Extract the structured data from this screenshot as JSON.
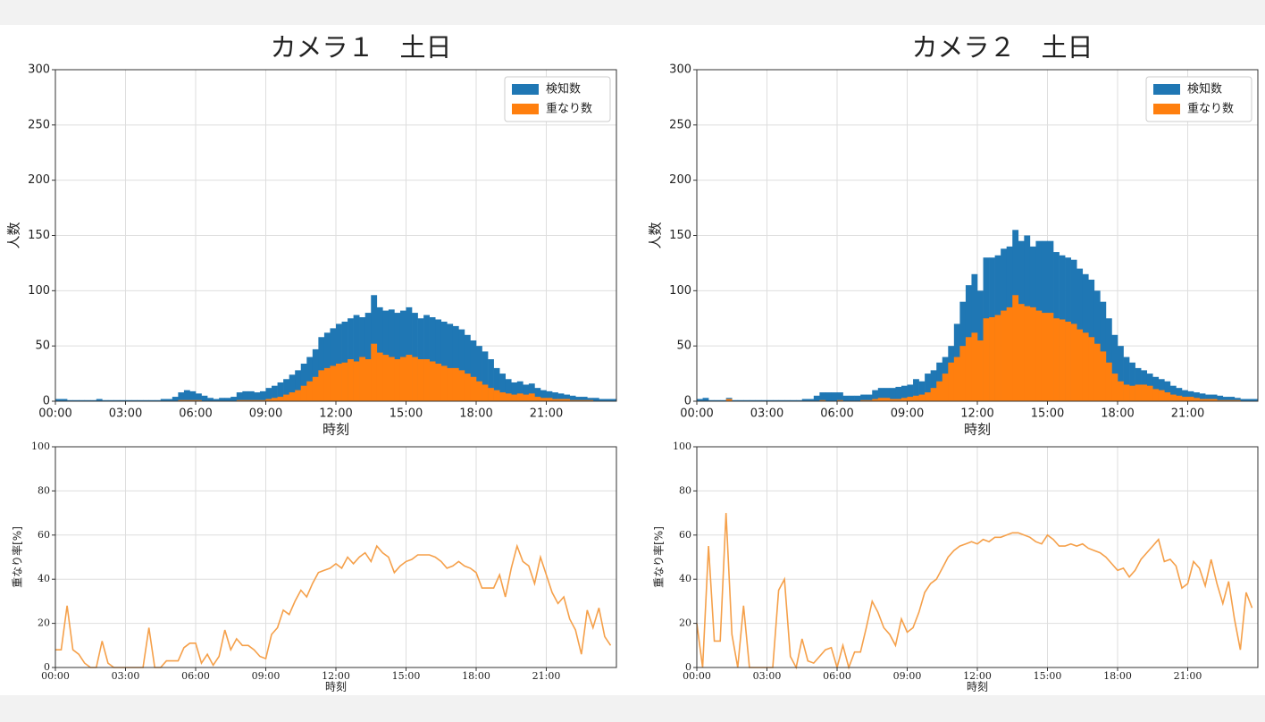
{
  "chart_data": [
    {
      "type": "bar",
      "title": "カメラ１　土日",
      "xlabel": "時刻",
      "ylabel": "人数",
      "legend": "upper right",
      "grid": true,
      "x": [
        0,
        0.25,
        0.5,
        0.75,
        1,
        1.25,
        1.5,
        1.75,
        2,
        2.25,
        2.5,
        2.75,
        3,
        3.25,
        3.5,
        3.75,
        4,
        4.25,
        4.5,
        4.75,
        5,
        5.25,
        5.5,
        5.75,
        6,
        6.25,
        6.5,
        6.75,
        7,
        7.25,
        7.5,
        7.75,
        8,
        8.25,
        8.5,
        8.75,
        9,
        9.25,
        9.5,
        9.75,
        10,
        10.25,
        10.5,
        10.75,
        11,
        11.25,
        11.5,
        11.75,
        12,
        12.25,
        12.5,
        12.75,
        13,
        13.25,
        13.5,
        13.75,
        14,
        14.25,
        14.5,
        14.75,
        15,
        15.25,
        15.5,
        15.75,
        16,
        16.25,
        16.5,
        16.75,
        17,
        17.25,
        17.5,
        17.75,
        18,
        18.25,
        18.5,
        18.75,
        19,
        19.25,
        19.5,
        19.75,
        20,
        20.25,
        20.5,
        20.75,
        21,
        21.25,
        21.5,
        21.75,
        22,
        22.25,
        22.5,
        22.75,
        23,
        23.25,
        23.5,
        23.75
      ],
      "xlim": [
        0,
        24
      ],
      "xticks": [
        {
          "value": 0,
          "label": "00:00"
        },
        {
          "value": 3,
          "label": "03:00"
        },
        {
          "value": 6,
          "label": "06:00"
        },
        {
          "value": 9,
          "label": "09:00"
        },
        {
          "value": 12,
          "label": "12:00"
        },
        {
          "value": 15,
          "label": "15:00"
        },
        {
          "value": 18,
          "label": "18:00"
        },
        {
          "value": 21,
          "label": "21:00"
        }
      ],
      "ylim": [
        0,
        300
      ],
      "yticks": [
        0,
        50,
        100,
        150,
        200,
        250,
        300
      ],
      "series": [
        {
          "name": "検知数",
          "color": "#1f77b4",
          "values": [
            2,
            2,
            1,
            1,
            1,
            1,
            1,
            2,
            1,
            1,
            1,
            1,
            1,
            1,
            1,
            1,
            1,
            1,
            2,
            2,
            4,
            8,
            10,
            9,
            7,
            5,
            3,
            2,
            3,
            3,
            4,
            8,
            9,
            9,
            8,
            9,
            12,
            14,
            17,
            20,
            24,
            28,
            34,
            40,
            47,
            58,
            62,
            66,
            70,
            72,
            75,
            78,
            76,
            80,
            96,
            85,
            82,
            83,
            80,
            82,
            85,
            80,
            75,
            78,
            76,
            74,
            72,
            70,
            68,
            65,
            60,
            55,
            50,
            45,
            38,
            30,
            25,
            20,
            17,
            18,
            15,
            16,
            12,
            10,
            9,
            8,
            7,
            6,
            5,
            4,
            4,
            3,
            3,
            2,
            2,
            2
          ]
        },
        {
          "name": "重なり数",
          "color": "#ff7f0e",
          "values": [
            0,
            0,
            0,
            0,
            0,
            0,
            0,
            0,
            0,
            0,
            0,
            0,
            0,
            0,
            0,
            0,
            0,
            0,
            0,
            0,
            0,
            1,
            1,
            1,
            1,
            0,
            0,
            0,
            0,
            0,
            0,
            1,
            1,
            1,
            1,
            1,
            2,
            3,
            4,
            6,
            8,
            10,
            14,
            18,
            22,
            28,
            30,
            32,
            34,
            35,
            38,
            36,
            40,
            38,
            52,
            44,
            42,
            40,
            38,
            40,
            42,
            40,
            38,
            38,
            36,
            34,
            32,
            30,
            30,
            28,
            25,
            22,
            18,
            15,
            12,
            10,
            8,
            7,
            6,
            7,
            6,
            7,
            4,
            3,
            3,
            2,
            2,
            2,
            1,
            1,
            1,
            1,
            0,
            0,
            0,
            0
          ]
        }
      ]
    },
    {
      "type": "bar",
      "title": "カメラ２　土日",
      "xlabel": "時刻",
      "ylabel": "人数",
      "legend": "upper right",
      "grid": true,
      "x": [
        0,
        0.25,
        0.5,
        0.75,
        1,
        1.25,
        1.5,
        1.75,
        2,
        2.25,
        2.5,
        2.75,
        3,
        3.25,
        3.5,
        3.75,
        4,
        4.25,
        4.5,
        4.75,
        5,
        5.25,
        5.5,
        5.75,
        6,
        6.25,
        6.5,
        6.75,
        7,
        7.25,
        7.5,
        7.75,
        8,
        8.25,
        8.5,
        8.75,
        9,
        9.25,
        9.5,
        9.75,
        10,
        10.25,
        10.5,
        10.75,
        11,
        11.25,
        11.5,
        11.75,
        12,
        12.25,
        12.5,
        12.75,
        13,
        13.25,
        13.5,
        13.75,
        14,
        14.25,
        14.5,
        14.75,
        15,
        15.25,
        15.5,
        15.75,
        16,
        16.25,
        16.5,
        16.75,
        17,
        17.25,
        17.5,
        17.75,
        18,
        18.25,
        18.5,
        18.75,
        19,
        19.25,
        19.5,
        19.75,
        20,
        20.25,
        20.5,
        20.75,
        21,
        21.25,
        21.5,
        21.75,
        22,
        22.25,
        22.5,
        22.75,
        23,
        23.25,
        23.5,
        23.75
      ],
      "xlim": [
        0,
        24
      ],
      "xticks": [
        {
          "value": 0,
          "label": "00:00"
        },
        {
          "value": 3,
          "label": "03:00"
        },
        {
          "value": 6,
          "label": "06:00"
        },
        {
          "value": 9,
          "label": "09:00"
        },
        {
          "value": 12,
          "label": "12:00"
        },
        {
          "value": 15,
          "label": "15:00"
        },
        {
          "value": 18,
          "label": "18:00"
        },
        {
          "value": 21,
          "label": "21:00"
        }
      ],
      "ylim": [
        0,
        300
      ],
      "yticks": [
        0,
        50,
        100,
        150,
        200,
        250,
        300
      ],
      "series": [
        {
          "name": "検知数",
          "color": "#1f77b4",
          "values": [
            2,
            3,
            1,
            1,
            1,
            3,
            1,
            1,
            1,
            1,
            1,
            1,
            1,
            1,
            1,
            1,
            1,
            1,
            2,
            2,
            5,
            8,
            8,
            8,
            8,
            5,
            5,
            5,
            6,
            6,
            10,
            12,
            12,
            12,
            13,
            14,
            15,
            20,
            18,
            25,
            28,
            35,
            40,
            50,
            70,
            90,
            105,
            115,
            100,
            130,
            130,
            132,
            138,
            140,
            155,
            145,
            150,
            140,
            145,
            145,
            145,
            135,
            132,
            130,
            128,
            120,
            115,
            110,
            100,
            90,
            75,
            60,
            50,
            40,
            35,
            30,
            28,
            25,
            22,
            20,
            18,
            14,
            12,
            10,
            9,
            8,
            7,
            6,
            6,
            5,
            4,
            4,
            3,
            2,
            2,
            2
          ]
        },
        {
          "name": "重なり数",
          "color": "#ff7f0e",
          "values": [
            0,
            0,
            0,
            0,
            0,
            2,
            0,
            0,
            0,
            0,
            0,
            0,
            0,
            0,
            0,
            0,
            0,
            0,
            0,
            0,
            0,
            1,
            0,
            0,
            1,
            0,
            0,
            0,
            1,
            1,
            2,
            3,
            3,
            2,
            2,
            3,
            4,
            5,
            6,
            8,
            12,
            18,
            25,
            35,
            40,
            50,
            58,
            62,
            55,
            75,
            76,
            78,
            82,
            85,
            96,
            88,
            86,
            85,
            82,
            80,
            80,
            75,
            74,
            72,
            70,
            65,
            62,
            58,
            52,
            45,
            35,
            25,
            18,
            15,
            14,
            15,
            15,
            14,
            11,
            10,
            8,
            6,
            5,
            4,
            4,
            3,
            2,
            2,
            2,
            1,
            1,
            1,
            1,
            0,
            0,
            0
          ]
        }
      ]
    },
    {
      "type": "line",
      "xlabel": "時刻",
      "ylabel": "重なり率[%]",
      "grid": true,
      "color": "#f5a04a",
      "x": [
        0,
        0.25,
        0.5,
        0.75,
        1,
        1.25,
        1.5,
        1.75,
        2,
        2.25,
        2.5,
        2.75,
        3,
        3.25,
        3.5,
        3.75,
        4,
        4.25,
        4.5,
        4.75,
        5,
        5.25,
        5.5,
        5.75,
        6,
        6.25,
        6.5,
        6.75,
        7,
        7.25,
        7.5,
        7.75,
        8,
        8.25,
        8.5,
        8.75,
        9,
        9.25,
        9.5,
        9.75,
        10,
        10.25,
        10.5,
        10.75,
        11,
        11.25,
        11.5,
        11.75,
        12,
        12.25,
        12.5,
        12.75,
        13,
        13.25,
        13.5,
        13.75,
        14,
        14.25,
        14.5,
        14.75,
        15,
        15.25,
        15.5,
        15.75,
        16,
        16.25,
        16.5,
        16.75,
        17,
        17.25,
        17.5,
        17.75,
        18,
        18.25,
        18.5,
        18.75,
        19,
        19.25,
        19.5,
        19.75,
        20,
        20.25,
        20.5,
        20.75,
        21,
        21.25,
        21.5,
        21.75,
        22,
        22.25,
        22.5,
        22.75,
        23,
        23.25,
        23.5,
        23.75
      ],
      "xlim": [
        0,
        24
      ],
      "xticks": [
        {
          "value": 0,
          "label": "00:00"
        },
        {
          "value": 3,
          "label": "03:00"
        },
        {
          "value": 6,
          "label": "06:00"
        },
        {
          "value": 9,
          "label": "09:00"
        },
        {
          "value": 12,
          "label": "12:00"
        },
        {
          "value": 15,
          "label": "15:00"
        },
        {
          "value": 18,
          "label": "18:00"
        },
        {
          "value": 21,
          "label": "21:00"
        }
      ],
      "ylim": [
        0,
        100
      ],
      "yticks": [
        0,
        20,
        40,
        60,
        80,
        100
      ],
      "values": [
        8,
        8,
        28,
        8,
        6,
        2,
        0,
        0,
        12,
        2,
        0,
        0,
        0,
        0,
        0,
        0,
        18,
        0,
        0,
        3,
        3,
        3,
        9,
        11,
        11,
        2,
        6,
        1,
        5,
        17,
        8,
        13,
        10,
        10,
        8,
        5,
        4,
        15,
        18,
        26,
        24,
        30,
        35,
        32,
        38,
        43,
        44,
        45,
        47,
        45,
        50,
        47,
        50,
        52,
        48,
        55,
        52,
        50,
        43,
        46,
        48,
        49,
        51,
        51,
        51,
        50,
        48,
        45,
        46,
        48,
        46,
        45,
        43,
        36,
        36,
        36,
        42,
        32,
        45,
        55,
        48,
        46,
        38,
        50,
        42,
        34,
        29,
        32,
        22,
        17,
        6,
        26,
        18,
        27,
        14,
        10
      ]
    },
    {
      "type": "line",
      "xlabel": "時刻",
      "ylabel": "重なり率[%]",
      "grid": true,
      "color": "#f5a04a",
      "x": [
        0,
        0.25,
        0.5,
        0.75,
        1,
        1.25,
        1.5,
        1.75,
        2,
        2.25,
        2.5,
        2.75,
        3,
        3.25,
        3.5,
        3.75,
        4,
        4.25,
        4.5,
        4.75,
        5,
        5.25,
        5.5,
        5.75,
        6,
        6.25,
        6.5,
        6.75,
        7,
        7.25,
        7.5,
        7.75,
        8,
        8.25,
        8.5,
        8.75,
        9,
        9.25,
        9.5,
        9.75,
        10,
        10.25,
        10.5,
        10.75,
        11,
        11.25,
        11.5,
        11.75,
        12,
        12.25,
        12.5,
        12.75,
        13,
        13.25,
        13.5,
        13.75,
        14,
        14.25,
        14.5,
        14.75,
        15,
        15.25,
        15.5,
        15.75,
        16,
        16.25,
        16.5,
        16.75,
        17,
        17.25,
        17.5,
        17.75,
        18,
        18.25,
        18.5,
        18.75,
        19,
        19.25,
        19.5,
        19.75,
        20,
        20.25,
        20.5,
        20.75,
        21,
        21.25,
        21.5,
        21.75,
        22,
        22.25,
        22.5,
        22.75,
        23,
        23.25,
        23.5,
        23.75
      ],
      "xlim": [
        0,
        24
      ],
      "xticks": [
        {
          "value": 0,
          "label": "00:00"
        },
        {
          "value": 3,
          "label": "03:00"
        },
        {
          "value": 6,
          "label": "06:00"
        },
        {
          "value": 9,
          "label": "09:00"
        },
        {
          "value": 12,
          "label": "12:00"
        },
        {
          "value": 15,
          "label": "15:00"
        },
        {
          "value": 18,
          "label": "18:00"
        },
        {
          "value": 21,
          "label": "21:00"
        }
      ],
      "ylim": [
        0,
        100
      ],
      "yticks": [
        0,
        20,
        40,
        60,
        80,
        100
      ],
      "values": [
        20,
        0,
        55,
        12,
        12,
        70,
        15,
        0,
        28,
        0,
        0,
        0,
        0,
        0,
        35,
        40,
        5,
        0,
        13,
        3,
        2,
        5,
        8,
        9,
        0,
        10,
        0,
        7,
        7,
        18,
        30,
        25,
        18,
        15,
        10,
        22,
        16,
        18,
        25,
        34,
        38,
        40,
        45,
        50,
        53,
        55,
        56,
        57,
        56,
        58,
        57,
        59,
        59,
        60,
        61,
        61,
        60,
        59,
        57,
        56,
        60,
        58,
        55,
        55,
        56,
        55,
        56,
        54,
        53,
        52,
        50,
        47,
        44,
        45,
        41,
        44,
        49,
        52,
        55,
        58,
        48,
        49,
        46,
        36,
        38,
        48,
        45,
        37,
        49,
        38,
        29,
        39,
        22,
        8,
        34,
        27
      ]
    }
  ]
}
